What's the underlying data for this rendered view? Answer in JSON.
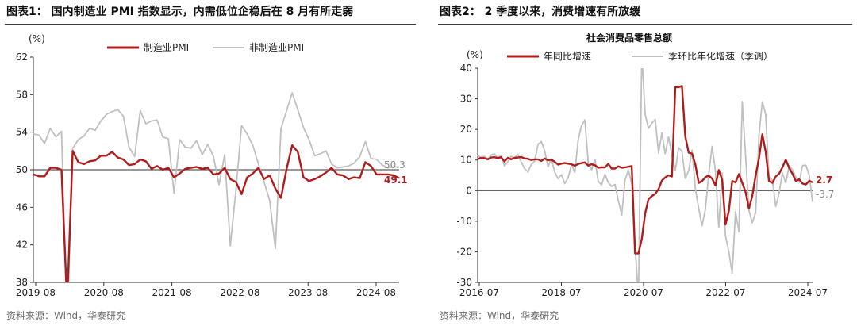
{
  "left_panel": {
    "figure_title": "图表1：  国内制造业 PMI 指数显示，内需低位企稳后在 8 月有所走弱",
    "source": "资料来源：Wind，华泰研究"
  },
  "right_panel": {
    "figure_title": "图表2：  2 季度以来，消费增速有所放缓",
    "source": "资料来源：Wind，华泰研究"
  },
  "chart_data": [
    {
      "type": "line",
      "title": "",
      "ylabel": "(%)",
      "ylim": [
        38,
        62
      ],
      "yticks": [
        38,
        42,
        46,
        50,
        54,
        58,
        62
      ],
      "x_tick_labels": [
        "2019-08",
        "2020-08",
        "2021-08",
        "2022-08",
        "2023-08",
        "2024-08"
      ],
      "legend_position": "top",
      "reference_line": 50,
      "colors": {
        "series_0": "#b01c1c",
        "series_1": "#c0c0c0",
        "axis": "#333333"
      },
      "end_labels": [
        "49.1",
        "50.3"
      ],
      "series": [
        {
          "name": "制造业PMI",
          "values": [
            49.5,
            49.3,
            49.3,
            50.2,
            50.2,
            50.0,
            35.7,
            52.0,
            50.8,
            50.6,
            50.9,
            51.0,
            51.5,
            51.5,
            51.9,
            51.3,
            51.1,
            50.5,
            50.6,
            51.1,
            50.9,
            50.1,
            50.4,
            50.0,
            50.2,
            49.2,
            49.6,
            50.1,
            50.2,
            50.3,
            50.1,
            50.2,
            49.5,
            49.6,
            50.2,
            49.0,
            48.7,
            47.4,
            49.2,
            49.6,
            50.2,
            49.0,
            49.4,
            48.0,
            47.0,
            50.1,
            52.6,
            51.9,
            49.2,
            48.8,
            49.0,
            49.3,
            49.7,
            50.2,
            49.5,
            49.4,
            49.0,
            49.2,
            49.1,
            50.8,
            50.4,
            49.5,
            49.5,
            49.5,
            49.4,
            49.1
          ],
          "end_label": "49.1"
        },
        {
          "name": "非制造业PMI",
          "values": [
            53.8,
            53.7,
            52.8,
            54.4,
            53.5,
            54.1,
            29.6,
            52.3,
            53.2,
            53.6,
            54.4,
            54.2,
            55.2,
            55.9,
            56.2,
            56.4,
            55.7,
            52.4,
            51.4,
            56.3,
            54.9,
            55.2,
            55.3,
            53.5,
            53.3,
            47.5,
            53.2,
            52.4,
            52.3,
            53.1,
            51.6,
            52.7,
            51.4,
            48.4,
            51.6,
            41.9,
            47.8,
            54.7,
            53.8,
            52.6,
            50.6,
            48.7,
            46.7,
            41.6,
            54.4,
            56.3,
            58.2,
            56.4,
            54.5,
            53.2,
            51.5,
            51.7,
            52.0,
            50.6,
            50.2,
            50.3,
            50.4,
            50.7,
            51.4,
            53.0,
            51.2,
            51.1,
            50.5,
            50.2,
            50.3,
            50.3
          ],
          "end_label": "50.3"
        }
      ]
    },
    {
      "type": "line",
      "title": "社会消费品零售总额",
      "ylabel": "(%)",
      "ylim": [
        -30,
        40
      ],
      "yticks": [
        -30,
        -20,
        -10,
        0,
        10,
        20,
        30,
        40
      ],
      "x_tick_labels": [
        "2016-07",
        "2018-07",
        "2020-07",
        "2022-07",
        "2024-07"
      ],
      "legend_position": "top",
      "reference_line": 0,
      "colors": {
        "series_0": "#b01c1c",
        "series_1": "#c0c0c0",
        "axis": "#333333"
      },
      "end_labels": [
        "2.7",
        "-3.7"
      ],
      "series": [
        {
          "name": "年同比增速",
          "values": [
            10.3,
            10.7,
            10.6,
            10.2,
            10.8,
            10.9,
            10.6,
            10.9,
            9.5,
            10.7,
            10.2,
            10.7,
            10.8,
            11.0,
            10.5,
            10.4,
            10.0,
            10.2,
            10.2,
            9.7,
            10.5,
            9.9,
            10.1,
            9.4,
            8.5,
            8.8,
            9.0,
            8.8,
            8.6,
            8.1,
            8.7,
            9.0,
            9.2,
            8.2,
            8.6,
            8.3,
            7.5,
            7.6,
            7.6,
            8.7,
            7.2,
            7.2,
            7.9,
            7.5,
            7.6,
            7.8,
            8.0,
            -20.5,
            -20.5,
            -15.8,
            -7.5,
            -2.8,
            -1.8,
            -1.1,
            0.5,
            3.3,
            4.3,
            5.0,
            4.6,
            33.8,
            33.8,
            34.2,
            17.7,
            12.4,
            12.1,
            8.5,
            2.5,
            3.1,
            4.4,
            4.9,
            3.9,
            1.7,
            6.7,
            3.5,
            -11.1,
            -6.7,
            3.1,
            2.7,
            5.4,
            2.5,
            -0.5,
            -5.9,
            -1.8,
            5.0,
            10.6,
            18.4,
            12.7,
            3.1,
            2.5,
            4.6,
            5.5,
            7.6,
            10.1,
            7.4,
            5.5,
            3.1,
            3.7,
            2.3,
            2.0,
            3.2,
            2.7
          ],
          "end_label": "2.7"
        },
        {
          "name": "季环比年化增速（季调）",
          "values": [
            11.5,
            10.8,
            11.2,
            10.3,
            11.6,
            12.0,
            10.8,
            11.4,
            8.0,
            9.4,
            11.2,
            10.6,
            11.9,
            9.3,
            7.2,
            6.1,
            8.5,
            9.6,
            15.1,
            16.0,
            13.0,
            7.8,
            10.4,
            6.0,
            3.9,
            5.2,
            2.3,
            4.2,
            8.5,
            6.0,
            16.5,
            21.2,
            23.1,
            9.1,
            6.8,
            10.2,
            3.0,
            1.9,
            5.4,
            2.6,
            1.4,
            2.0,
            -3.3,
            -7.9,
            3.5,
            6.7,
            2.2,
            -18.1,
            -70.0,
            75.0,
            25.0,
            20.3,
            22.0,
            23.3,
            12.2,
            18.9,
            12.0,
            17.5,
            11.6,
            6.5,
            14.0,
            12.8,
            4.0,
            6.5,
            13.2,
            0.6,
            -5.8,
            -11.5,
            -6.0,
            5.4,
            14.5,
            6.4,
            -12.0,
            5.8,
            -14.9,
            -20.0,
            -27.0,
            -6.9,
            -13.4,
            29.1,
            11.4,
            -6.4,
            -10.5,
            -7.2,
            18.3,
            29.0,
            24.9,
            4.5,
            3.3,
            -5.2,
            -0.8,
            5.8,
            2.5,
            8.1,
            6.8,
            4.4,
            2.7,
            8.2,
            8.3,
            5.0,
            -3.7
          ],
          "end_label": "-3.7"
        }
      ]
    }
  ]
}
